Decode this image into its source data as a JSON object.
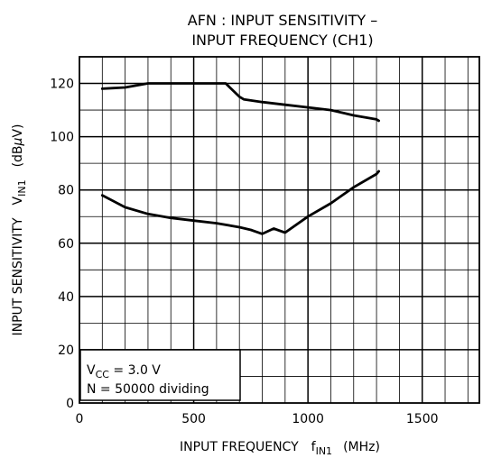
{
  "chart_data": {
    "type": "line",
    "title_line1": "AFN : INPUT SENSITIVITY  –",
    "title_line2": "INPUT FREQUENCY (CH1)",
    "xlabel": {
      "text": "INPUT FREQUENCY",
      "symbol": "f",
      "subscript": "IN1",
      "unit": "(MHz)"
    },
    "ylabel": {
      "text": "INPUT SENSITIVITY",
      "symbol": "V",
      "subscript": "IN1",
      "unit_pre": "(dB",
      "unit_mu": "μ",
      "unit_post": "V)"
    },
    "xlim": [
      0,
      1750
    ],
    "ylim": [
      0,
      130
    ],
    "xticks": [
      0,
      500,
      1000,
      1500
    ],
    "xtick_labels": [
      "0",
      "500",
      "1000",
      "1500"
    ],
    "yticks": [
      0,
      20,
      40,
      60,
      80,
      100,
      120
    ],
    "ytick_labels": [
      "0",
      "20",
      "40",
      "60",
      "80",
      "100",
      "120"
    ],
    "x_minor_step": 100,
    "y_minor_step": 10,
    "grid": true,
    "series": [
      {
        "x": [
          100,
          200,
          300,
          400,
          500,
          600,
          640,
          700,
          720,
          800,
          900,
          1000,
          1100,
          1200,
          1300,
          1310
        ],
        "y": [
          118,
          118.5,
          120,
          120,
          120,
          120,
          120,
          115,
          114,
          113,
          112,
          111,
          110,
          108,
          106.5,
          106
        ]
      },
      {
        "x": [
          100,
          200,
          300,
          400,
          500,
          600,
          700,
          750,
          800,
          850,
          900,
          1000,
          1100,
          1200,
          1300,
          1310
        ],
        "y": [
          78,
          73.5,
          71,
          69.5,
          68.5,
          67.5,
          66,
          65,
          63.5,
          65.5,
          64,
          70,
          75,
          81,
          86,
          87
        ]
      }
    ],
    "annotation": {
      "line1_symbol": "V",
      "line1_subscript": "CC",
      "line1_rest": " = 3.0 V",
      "line2": "N = 50000 dividing"
    }
  }
}
